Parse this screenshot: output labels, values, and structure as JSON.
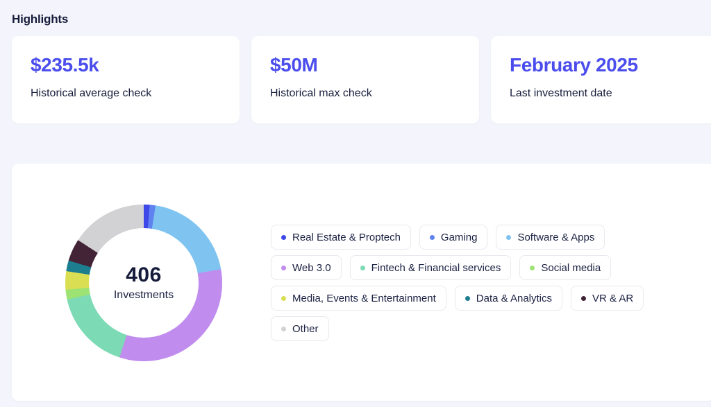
{
  "colors": {
    "accent": "#4b4ded",
    "text_dark": "#171d3b",
    "page_bg": "#f4f5fc",
    "chip_border": "#e9e9f0"
  },
  "highlights": {
    "title": "Highlights",
    "cards": [
      {
        "value": "$235.5k",
        "label": "Historical average check"
      },
      {
        "value": "$50M",
        "label": "Historical max check"
      },
      {
        "value": "February 2025",
        "label": "Last investment date"
      }
    ]
  },
  "chart_data": {
    "type": "pie",
    "variant": "donut",
    "title": "",
    "total": "406",
    "total_label": "Investments",
    "legend_position": "right",
    "segments": [
      {
        "label": "Real Estate & Proptech",
        "percent": 1.2,
        "color": "#3e47e8"
      },
      {
        "label": "Gaming",
        "percent": 1.2,
        "color": "#5f82f0"
      },
      {
        "label": "Software & Apps",
        "percent": 19.8,
        "color": "#7fc4f0"
      },
      {
        "label": "Web 3.0",
        "percent": 32.8,
        "color": "#c08cee"
      },
      {
        "label": "Fintech & Financial services",
        "percent": 16.6,
        "color": "#7cdab4"
      },
      {
        "label": "Social media",
        "percent": 2.0,
        "color": "#9ce374"
      },
      {
        "label": "Media, Events & Entertainment",
        "percent": 3.8,
        "color": "#d9de53"
      },
      {
        "label": "Data & Analytics",
        "percent": 2.2,
        "color": "#1d7e90"
      },
      {
        "label": "VR & AR",
        "percent": 4.6,
        "color": "#432336"
      },
      {
        "label": "Other",
        "percent": 15.8,
        "color": "#d2d2d4"
      }
    ]
  }
}
